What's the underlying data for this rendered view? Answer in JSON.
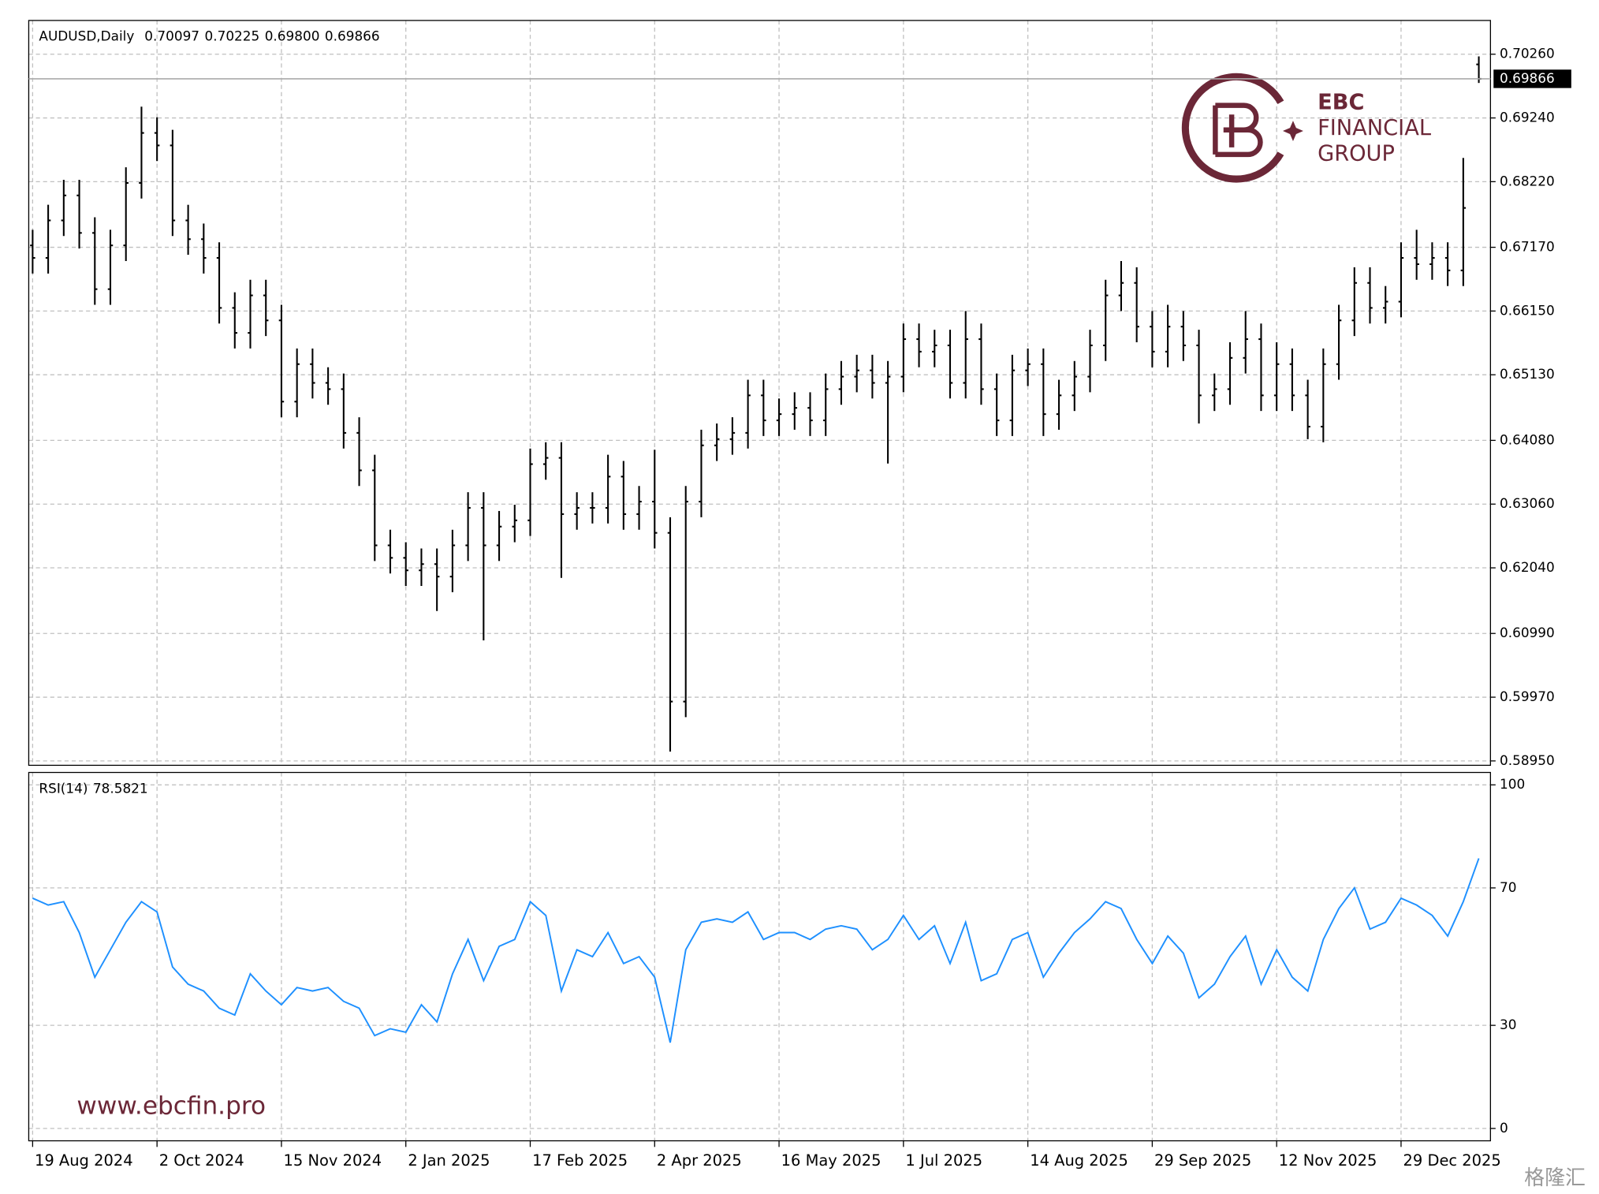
{
  "chart_data": {
    "type": "ohlc",
    "title": "AUDUSD,Daily",
    "header_labels": [
      "0.70097",
      "0.70225",
      "0.69800",
      "0.69866"
    ],
    "color": "#000000",
    "grid": true,
    "xlim": [
      -1,
      375
    ],
    "xticks": [
      {
        "value": 0,
        "label": "19 Aug 2024"
      },
      {
        "value": 32,
        "label": "2 Oct 2024"
      },
      {
        "value": 64,
        "label": "15 Nov 2024"
      },
      {
        "value": 96,
        "label": "2 Jan 2025"
      },
      {
        "value": 128,
        "label": "17 Feb 2025"
      },
      {
        "value": 160,
        "label": "2 Apr 2025"
      },
      {
        "value": 192,
        "label": "16 May 2025"
      },
      {
        "value": 224,
        "label": "1 Jul 2025"
      },
      {
        "value": 256,
        "label": "14 Aug 2025"
      },
      {
        "value": 288,
        "label": "29 Sep 2025"
      },
      {
        "value": 320,
        "label": "12 Nov 2025"
      },
      {
        "value": 352,
        "label": "29 Dec 2025"
      }
    ],
    "ylim": [
      0.5888,
      0.708
    ],
    "yticks": [
      {
        "value": 0.7026,
        "label": "0.70260"
      },
      {
        "value": 0.6924,
        "label": "0.69240"
      },
      {
        "value": 0.6822,
        "label": "0.68220"
      },
      {
        "value": 0.6717,
        "label": "0.67170"
      },
      {
        "value": 0.6615,
        "label": "0.66150"
      },
      {
        "value": 0.6513,
        "label": "0.65130"
      },
      {
        "value": 0.6408,
        "label": "0.64080"
      },
      {
        "value": 0.6306,
        "label": "0.63060"
      },
      {
        "value": 0.6204,
        "label": "0.62040"
      },
      {
        "value": 0.6099,
        "label": "0.60990"
      },
      {
        "value": 0.5997,
        "label": "0.59970"
      },
      {
        "value": 0.5895,
        "label": "0.58950"
      }
    ],
    "x": [
      0,
      4,
      8,
      12,
      16,
      20,
      24,
      28,
      32,
      36,
      40,
      44,
      48,
      52,
      56,
      60,
      64,
      68,
      72,
      76,
      80,
      84,
      88,
      92,
      96,
      100,
      104,
      108,
      112,
      116,
      120,
      124,
      128,
      132,
      136,
      140,
      144,
      148,
      152,
      156,
      160,
      164,
      168,
      172,
      176,
      180,
      184,
      188,
      192,
      196,
      200,
      204,
      208,
      212,
      216,
      220,
      224,
      228,
      232,
      236,
      240,
      244,
      248,
      252,
      256,
      260,
      264,
      268,
      272,
      276,
      280,
      284,
      288,
      292,
      296,
      300,
      304,
      308,
      312,
      316,
      320,
      324,
      328,
      332,
      336,
      340,
      344,
      348,
      352,
      356,
      360,
      364,
      368,
      372
    ],
    "open": [
      0.672,
      0.67,
      0.676,
      0.68,
      0.674,
      0.665,
      0.672,
      0.682,
      0.69,
      0.688,
      0.676,
      0.673,
      0.67,
      0.662,
      0.658,
      0.664,
      0.66,
      0.647,
      0.653,
      0.65,
      0.649,
      0.642,
      0.636,
      0.624,
      0.622,
      0.62,
      0.621,
      0.619,
      0.624,
      0.63,
      0.624,
      0.627,
      0.628,
      0.637,
      0.638,
      0.629,
      0.63,
      0.63,
      0.635,
      0.629,
      0.631,
      0.626,
      0.599,
      0.631,
      0.64,
      0.641,
      0.642,
      0.648,
      0.644,
      0.645,
      0.646,
      0.644,
      0.649,
      0.651,
      0.652,
      0.65,
      0.651,
      0.657,
      0.655,
      0.656,
      0.65,
      0.657,
      0.649,
      0.644,
      0.652,
      0.653,
      0.645,
      0.648,
      0.651,
      0.656,
      0.664,
      0.666,
      0.659,
      0.655,
      0.659,
      0.656,
      0.648,
      0.649,
      0.654,
      0.657,
      0.648,
      0.653,
      0.648,
      0.643,
      0.653,
      0.66,
      0.666,
      0.662,
      0.663,
      0.67,
      0.669,
      0.67,
      0.668,
      0.70097
    ],
    "high": [
      0.6745,
      0.6785,
      0.6825,
      0.6825,
      0.6765,
      0.6745,
      0.6845,
      0.6942,
      0.6925,
      0.6905,
      0.6785,
      0.6755,
      0.6725,
      0.6645,
      0.6665,
      0.6665,
      0.6625,
      0.6555,
      0.6555,
      0.6525,
      0.6515,
      0.6445,
      0.6385,
      0.6265,
      0.6245,
      0.6235,
      0.6235,
      0.6265,
      0.6325,
      0.6325,
      0.6295,
      0.6305,
      0.6395,
      0.6405,
      0.6405,
      0.6325,
      0.6325,
      0.6385,
      0.6375,
      0.6335,
      0.6393,
      0.6285,
      0.6335,
      0.6425,
      0.6435,
      0.6445,
      0.6505,
      0.6505,
      0.6475,
      0.6485,
      0.6485,
      0.6515,
      0.6535,
      0.6545,
      0.6545,
      0.6535,
      0.6595,
      0.6595,
      0.6585,
      0.6585,
      0.6615,
      0.6595,
      0.6515,
      0.6545,
      0.6555,
      0.6555,
      0.6505,
      0.6535,
      0.6585,
      0.6665,
      0.6695,
      0.6685,
      0.6615,
      0.6625,
      0.6615,
      0.6585,
      0.6515,
      0.6565,
      0.6615,
      0.6595,
      0.6565,
      0.6555,
      0.6505,
      0.6555,
      0.6625,
      0.6685,
      0.6685,
      0.6655,
      0.6725,
      0.6745,
      0.6725,
      0.6725,
      0.686,
      0.70225
    ],
    "low": [
      0.6675,
      0.6675,
      0.6735,
      0.6715,
      0.6625,
      0.6625,
      0.6695,
      0.6795,
      0.6855,
      0.6735,
      0.6705,
      0.6675,
      0.6595,
      0.6555,
      0.6555,
      0.6575,
      0.6445,
      0.6445,
      0.6475,
      0.6465,
      0.6395,
      0.6335,
      0.6215,
      0.6195,
      0.6175,
      0.6175,
      0.6135,
      0.6165,
      0.6215,
      0.6088,
      0.6215,
      0.6245,
      0.6255,
      0.6345,
      0.6188,
      0.6265,
      0.6275,
      0.6275,
      0.6265,
      0.6265,
      0.6235,
      0.591,
      0.5965,
      0.6285,
      0.6375,
      0.6385,
      0.6395,
      0.6415,
      0.6415,
      0.6425,
      0.6415,
      0.6415,
      0.6465,
      0.6485,
      0.6475,
      0.6371,
      0.6485,
      0.6525,
      0.6525,
      0.6475,
      0.6475,
      0.6465,
      0.6415,
      0.6415,
      0.6495,
      0.6415,
      0.6425,
      0.6455,
      0.6485,
      0.6535,
      0.6615,
      0.6565,
      0.6525,
      0.6525,
      0.6535,
      0.6435,
      0.6455,
      0.6465,
      0.6515,
      0.6455,
      0.6455,
      0.6455,
      0.641,
      0.6405,
      0.6505,
      0.6575,
      0.6595,
      0.6595,
      0.6605,
      0.6665,
      0.6665,
      0.6655,
      0.6655,
      0.698
    ],
    "close": [
      0.67,
      0.676,
      0.68,
      0.674,
      0.665,
      0.672,
      0.682,
      0.69,
      0.688,
      0.676,
      0.673,
      0.67,
      0.662,
      0.658,
      0.664,
      0.66,
      0.647,
      0.653,
      0.65,
      0.649,
      0.642,
      0.636,
      0.624,
      0.622,
      0.62,
      0.621,
      0.619,
      0.624,
      0.63,
      0.624,
      0.627,
      0.628,
      0.637,
      0.638,
      0.629,
      0.63,
      0.63,
      0.635,
      0.629,
      0.631,
      0.626,
      0.599,
      0.631,
      0.64,
      0.641,
      0.642,
      0.648,
      0.644,
      0.645,
      0.646,
      0.644,
      0.649,
      0.651,
      0.652,
      0.65,
      0.651,
      0.657,
      0.655,
      0.656,
      0.65,
      0.657,
      0.649,
      0.644,
      0.652,
      0.653,
      0.645,
      0.648,
      0.651,
      0.656,
      0.664,
      0.666,
      0.659,
      0.655,
      0.659,
      0.656,
      0.648,
      0.649,
      0.654,
      0.657,
      0.648,
      0.653,
      0.648,
      0.643,
      0.653,
      0.66,
      0.666,
      0.662,
      0.663,
      0.67,
      0.669,
      0.67,
      0.668,
      0.678,
      0.69866
    ],
    "indicator": {
      "name": "RSI(14)",
      "color": "#1e90ff",
      "ylim": [
        -3.6,
        103.6
      ],
      "yticks": [
        100,
        70,
        30,
        0
      ],
      "values": [
        67,
        65,
        66,
        57,
        44,
        52,
        60,
        66,
        63,
        47,
        42,
        40,
        35,
        33,
        45,
        40,
        36,
        41,
        40,
        41,
        37,
        35,
        27,
        29,
        28,
        36,
        31,
        45,
        55,
        43,
        53,
        55,
        66,
        62,
        40,
        52,
        50,
        57,
        48,
        50,
        44,
        25,
        52,
        60,
        61,
        60,
        63,
        55,
        57,
        57,
        55,
        58,
        59,
        58,
        52,
        55,
        62,
        55,
        59,
        48,
        60,
        43,
        45,
        55,
        57,
        44,
        51,
        57,
        61,
        66,
        64,
        55,
        48,
        56,
        51,
        38,
        42,
        50,
        56,
        42,
        52,
        44,
        40,
        55,
        64,
        70,
        58,
        60,
        67,
        65,
        62,
        56,
        66,
        78.5821
      ]
    },
    "branding": {
      "logo_line1": "EBC",
      "logo_line2": "FINANCIAL",
      "logo_line3": "GROUP",
      "website": "www.ebcfin.pro",
      "watermark": "格隆汇"
    }
  }
}
